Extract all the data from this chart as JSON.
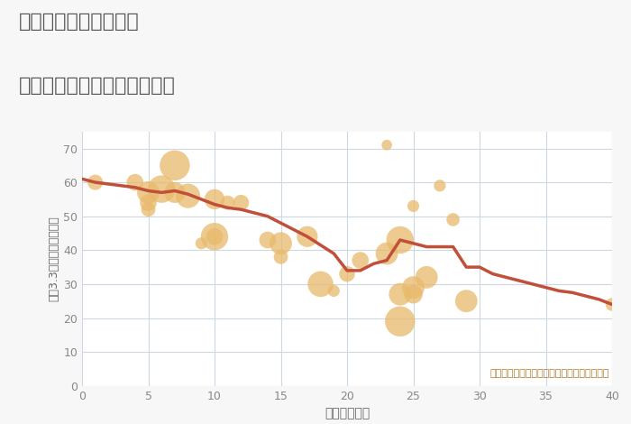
{
  "title_line1": "愛知県常滑市西阿野の",
  "title_line2": "築年数別中古マンション価格",
  "xlabel": "築年数（年）",
  "ylabel": "平（3.3㎡）単価（万円）",
  "background_color": "#f7f7f7",
  "plot_bg_color": "#ffffff",
  "annotation": "円の大きさは、取引のあった物件面積を示す",
  "annotation_color": "#b07828",
  "xlim": [
    0,
    40
  ],
  "ylim": [
    0,
    75
  ],
  "xticks": [
    0,
    5,
    10,
    15,
    20,
    25,
    30,
    35,
    40
  ],
  "yticks": [
    0,
    10,
    20,
    30,
    40,
    50,
    60,
    70
  ],
  "scatter_x": [
    1,
    4,
    5,
    5,
    5,
    6,
    7,
    7,
    8,
    9,
    10,
    10,
    10,
    11,
    12,
    14,
    15,
    15,
    17,
    18,
    19,
    20,
    21,
    23,
    23,
    24,
    24,
    24,
    25,
    25,
    25,
    26,
    27,
    28,
    29,
    40
  ],
  "scatter_y": [
    60,
    60,
    57,
    54,
    52,
    58,
    65,
    57,
    56,
    42,
    55,
    44,
    44,
    54,
    54,
    43,
    42,
    38,
    44,
    30,
    28,
    33,
    37,
    71,
    39,
    43,
    27,
    19,
    53,
    29,
    27,
    32,
    59,
    49,
    25,
    24
  ],
  "scatter_size": [
    150,
    180,
    320,
    180,
    130,
    480,
    580,
    280,
    380,
    90,
    260,
    480,
    180,
    130,
    160,
    180,
    320,
    130,
    280,
    420,
    90,
    160,
    180,
    70,
    320,
    480,
    320,
    580,
    90,
    320,
    220,
    320,
    90,
    110,
    320,
    110
  ],
  "scatter_color": "#e8b96a",
  "scatter_alpha": 0.75,
  "line_x": [
    0,
    1,
    2,
    3,
    4,
    5,
    6,
    7,
    8,
    9,
    10,
    11,
    12,
    13,
    14,
    15,
    16,
    17,
    18,
    19,
    20,
    21,
    22,
    23,
    24,
    25,
    26,
    27,
    28,
    29,
    30,
    31,
    32,
    33,
    34,
    35,
    36,
    37,
    38,
    39,
    40
  ],
  "line_y": [
    61,
    60,
    59.5,
    59,
    58.5,
    57.5,
    57,
    57.5,
    56.5,
    55,
    53.5,
    52.5,
    52,
    51,
    50,
    48,
    46,
    44,
    41.5,
    39,
    34,
    34,
    36,
    37,
    43,
    42,
    41,
    41,
    41,
    35,
    35,
    33,
    32,
    31,
    30,
    29,
    28,
    27.5,
    26.5,
    25.5,
    24
  ],
  "line_color": "#c0503a",
  "line_width": 2.5,
  "grid_color": "#cdd8e5",
  "title_color": "#555555",
  "axis_label_color": "#666666",
  "tick_color": "#888888",
  "title_fontsize": 16,
  "label_fontsize": 10,
  "tick_fontsize": 9,
  "annot_fontsize": 8
}
